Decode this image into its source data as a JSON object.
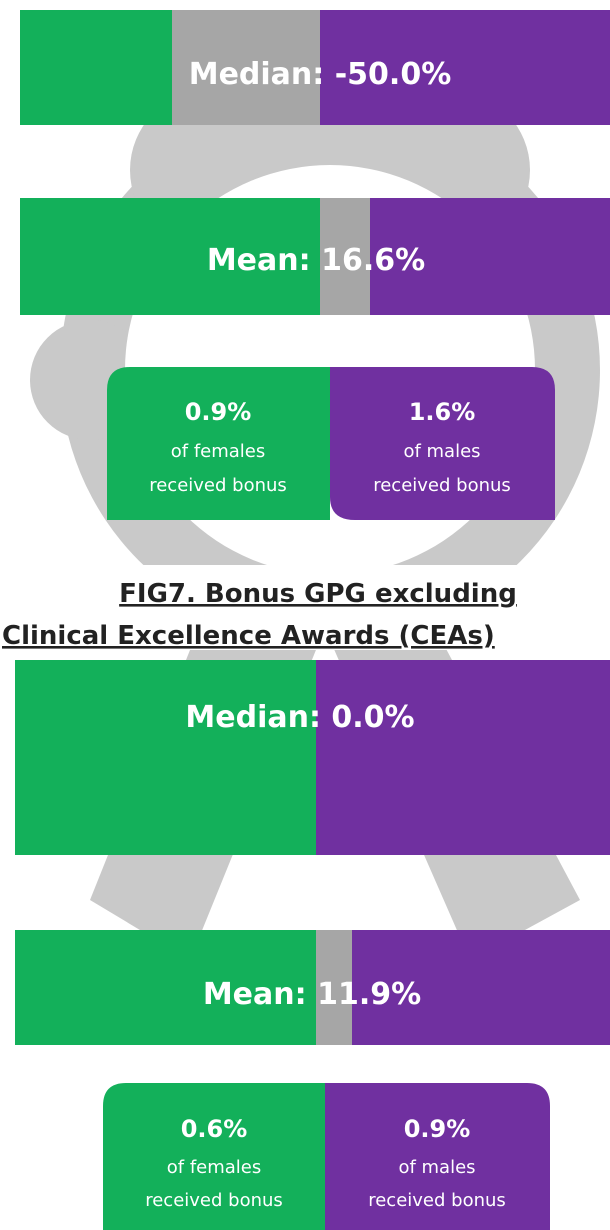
{
  "sections": [
    {
      "bars": [
        {
          "label": "Median:",
          "value": "-50.0%"
        },
        {
          "label": "Mean:",
          "value": "16.6%"
        }
      ],
      "female": {
        "value": "0.9%",
        "line1": "of females",
        "line2": "received bonus"
      },
      "male": {
        "value": "1.6%",
        "line1": "of males",
        "line2": "received bonus"
      }
    },
    {
      "bars": [
        {
          "label": "Median:",
          "value": "0.0%"
        },
        {
          "label": "Mean:",
          "value": "11.9%"
        }
      ],
      "female": {
        "value": "0.6%",
        "line1": "of females",
        "line2": "received bonus"
      },
      "male": {
        "value": "0.9%",
        "line1": "of males",
        "line2": "received bonus"
      }
    }
  ],
  "title": {
    "line1": "FIG7. Bonus GPG excluding",
    "line2": "Clinical Excellence Awards (CEAs)"
  }
}
